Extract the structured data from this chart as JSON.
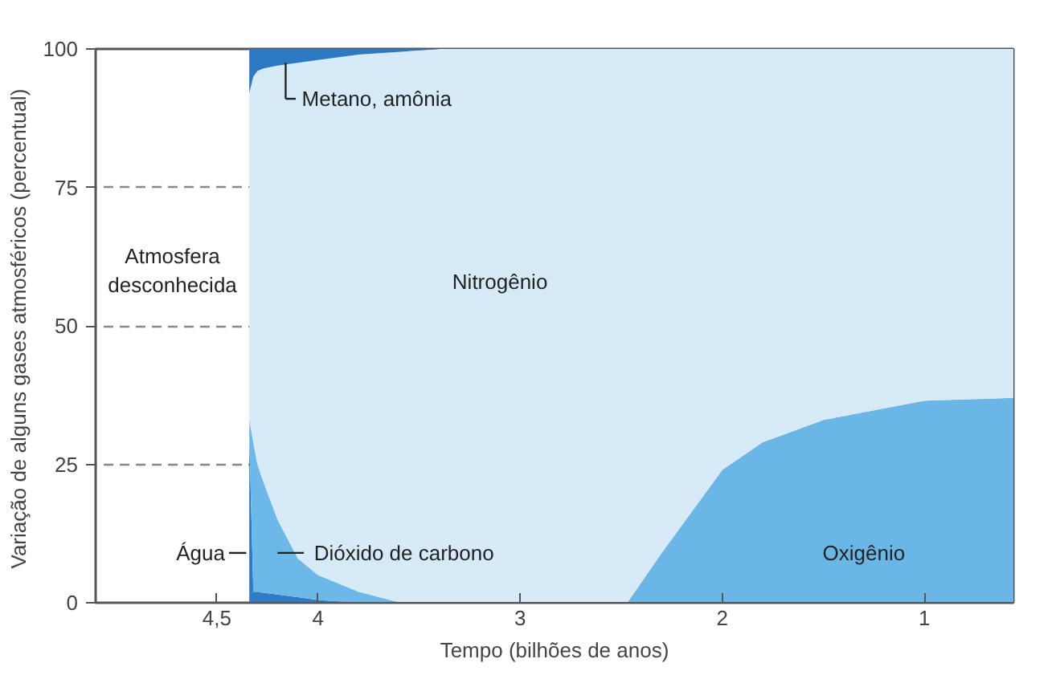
{
  "chart_data": {
    "type": "area",
    "stacked": true,
    "xlabel": "Tempo (bilhões de anos)",
    "ylabel": "Variação de alguns gases atmosféricos  (percentual)",
    "x": [
      4.34,
      4.32,
      4.3,
      4.27,
      4.2,
      4.1,
      4.0,
      3.8,
      3.59,
      3.4,
      3.0,
      2.47,
      2.3,
      2.1,
      2.0,
      1.8,
      1.5,
      1.0,
      0.56
    ],
    "series": [
      {
        "name": "Água",
        "color": "#2f7cc4",
        "values": [
          30,
          2,
          2,
          1.8,
          1.5,
          1,
          0.5,
          0,
          0,
          0,
          0,
          0,
          0,
          0,
          0,
          0,
          0,
          0,
          0
        ]
      },
      {
        "name": "Dióxido de carbono",
        "color": "#6cb8e8",
        "values": [
          3,
          27,
          23,
          20,
          13.5,
          7,
          4.5,
          2,
          0,
          0,
          0,
          0,
          0,
          0,
          0,
          0,
          0,
          0,
          0
        ]
      },
      {
        "name": "Oxigênio",
        "color": "#6ab6e6",
        "values": [
          0,
          0,
          0,
          0,
          0,
          0,
          0,
          0,
          0,
          0,
          0,
          0,
          9,
          19,
          24,
          29,
          33,
          36.5,
          37
        ]
      },
      {
        "name": "Nitrogênio",
        "color": "#d6eaf7",
        "values": [
          59,
          66,
          71,
          74.7,
          82,
          89.5,
          93,
          97,
          99.5,
          100,
          100,
          100,
          91,
          81,
          76,
          71,
          67,
          63.5,
          63
        ]
      },
      {
        "name": "Metano, amônia",
        "color": "#2d7ac2",
        "values": [
          8,
          5,
          4,
          3.5,
          3,
          2.5,
          2,
          1,
          0.5,
          0,
          0,
          0,
          0,
          0,
          0,
          0,
          0,
          0,
          0
        ]
      }
    ],
    "annotations": [
      "Atmosfera\ndesconhecida"
    ],
    "xlim": [
      5.1,
      0.56
    ],
    "ylim": [
      0,
      100
    ],
    "xticks": [
      {
        "value": 4.5,
        "label": "4,5"
      },
      4,
      3,
      2,
      1
    ],
    "yticks": [
      0,
      25,
      50,
      75,
      100
    ],
    "grid": "y"
  }
}
